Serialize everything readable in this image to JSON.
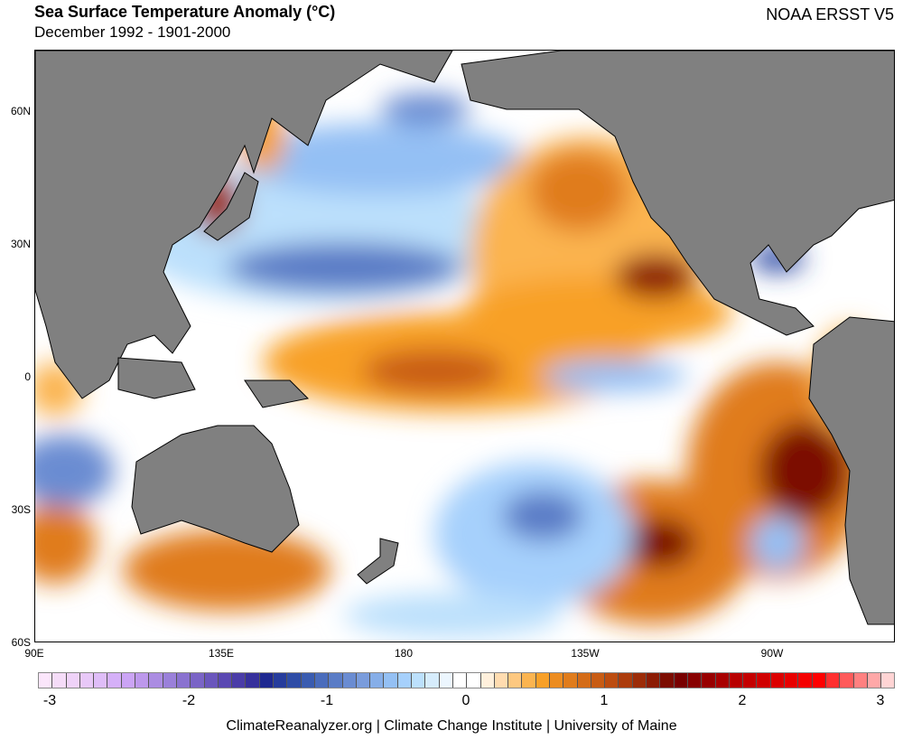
{
  "header": {
    "title": "Sea Surface Temperature Anomaly (°C)",
    "subtitle": "December 1992 - 1901-2000",
    "dataset": "NOAA ERSST V5"
  },
  "map": {
    "lat_labels": [
      "60N",
      "30N",
      "0",
      "30S",
      "60S"
    ],
    "lon_labels": [
      "90E",
      "135E",
      "180",
      "135W",
      "90W"
    ]
  },
  "colorbar": {
    "tick_labels": [
      "-3",
      "-2",
      "-1",
      "0",
      "1",
      "2",
      "3"
    ],
    "range": [
      -3.1,
      3.1
    ],
    "colors": [
      "#fbe6fb",
      "#f5dcf8",
      "#efd2f8",
      "#e8c8f8",
      "#dfbdf8",
      "#d5b0f8",
      "#cba4f5",
      "#bd98ec",
      "#ab8ce2",
      "#9a80da",
      "#8a72d0",
      "#7a64c6",
      "#6a56bc",
      "#5a48b2",
      "#4a3ca8",
      "#36309c",
      "#1e2890",
      "#263c9c",
      "#2e4ca6",
      "#3a5cb0",
      "#4a6cbc",
      "#5a7cc6",
      "#6a8cd2",
      "#7a9cdc",
      "#86aee8",
      "#94c0f4",
      "#a6d0fc",
      "#bce0fc",
      "#d6ecfc",
      "#ecf6fe",
      "#ffffff",
      "#ffffff",
      "#fff0dc",
      "#ffdcb0",
      "#fdc880",
      "#fbb450",
      "#f8a028",
      "#ec8c20",
      "#e07c1c",
      "#d46c18",
      "#c85c14",
      "#bc4c10",
      "#ac3c0c",
      "#9c2c08",
      "#8c1c04",
      "#7c0c00",
      "#780000",
      "#880000",
      "#980000",
      "#a80000",
      "#b80000",
      "#c40000",
      "#d00000",
      "#dc0000",
      "#e80000",
      "#f40000",
      "#ff0000",
      "#ff3030",
      "#ff5a5a",
      "#ff8080",
      "#ffa8a8",
      "#ffd4d4"
    ]
  },
  "footer": "ClimateReanalyzer.org | Climate Change Institute | University of Maine"
}
